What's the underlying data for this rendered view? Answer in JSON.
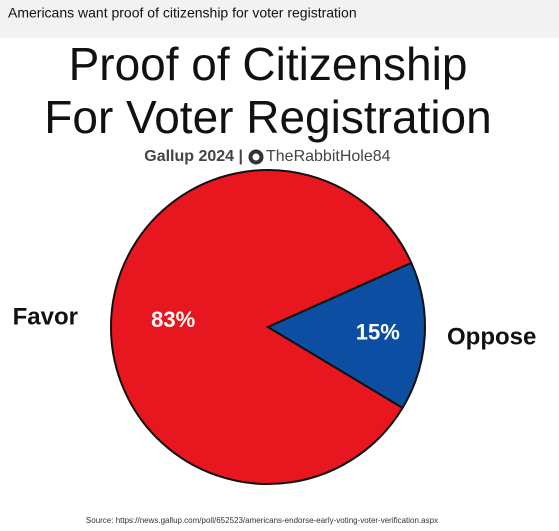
{
  "post_text": "Americans want proof of citizenship for voter registration",
  "chart_data": {
    "type": "pie",
    "title": [
      "Proof of Citizenship",
      "For Voter Registration"
    ],
    "subtitle": "Gallup 2024 |",
    "credit": "TheRabbitHole84",
    "source": "Source: https://news.gallup.com/poll/652523/americans-endorse-early-voting-voter-verification.aspx",
    "categories": [
      "Favor",
      "Oppose"
    ],
    "values": [
      83,
      15
    ],
    "value_labels": [
      "83%",
      "15%"
    ],
    "colors": [
      "#e8161f",
      "#0b4ea2"
    ]
  }
}
